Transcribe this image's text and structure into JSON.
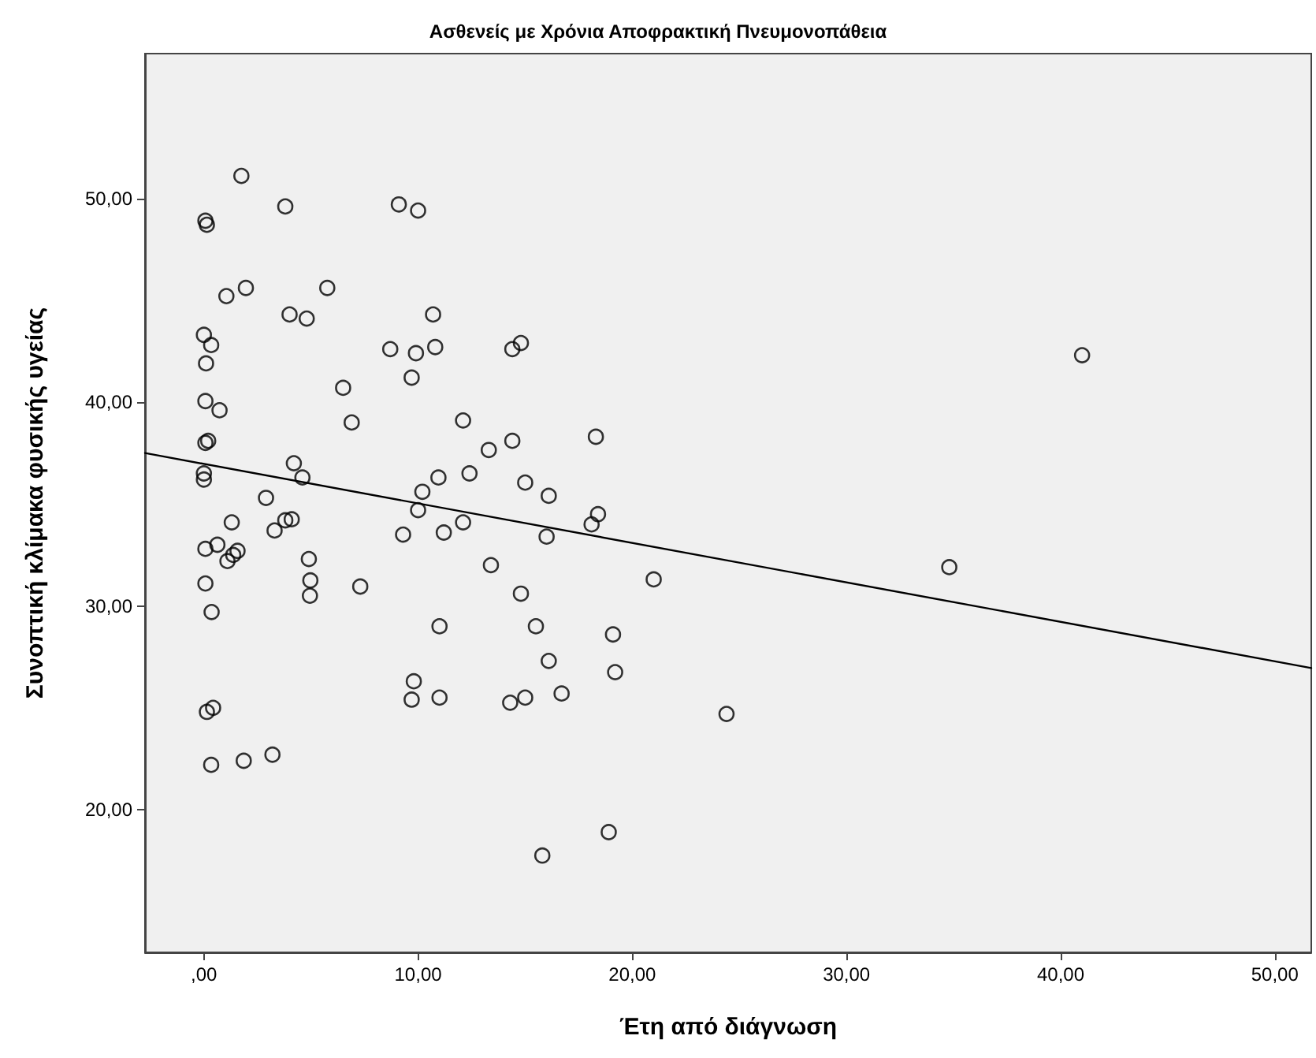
{
  "chart_data": {
    "type": "scatter",
    "title": "Ασθενείς με Χρόνια Αποφρακτική Πνευμονοπάθεια",
    "xlabel": "Έτη από διάγνωση",
    "ylabel": "Συνοπτική κλίμακα φυσικής υγείας",
    "xlim": [
      -2.75,
      51.7
    ],
    "ylim": [
      13.0,
      57.1
    ],
    "xticks": [
      {
        "value": 0,
        "label": ",00"
      },
      {
        "value": 10,
        "label": "10,00"
      },
      {
        "value": 20,
        "label": "20,00"
      },
      {
        "value": 30,
        "label": "30,00"
      },
      {
        "value": 40,
        "label": "40,00"
      },
      {
        "value": 50,
        "label": "50,00"
      }
    ],
    "yticks": [
      {
        "value": 20,
        "label": "20,00"
      },
      {
        "value": 30,
        "label": "30,00"
      },
      {
        "value": 40,
        "label": "40,00"
      },
      {
        "value": 50,
        "label": "50,00"
      }
    ],
    "grid": false,
    "marker": "circle",
    "series": [
      {
        "color": "#000000",
        "x": [
          1.75,
          3.8,
          0.07,
          0.14,
          9.1,
          10.0,
          1.05,
          1.96,
          5.76,
          4.0,
          4.8,
          0,
          0.34,
          0.1,
          8.7,
          9.9,
          9.7,
          6.5,
          0.07,
          0.73,
          6.9,
          0.07,
          0.2,
          4.2,
          4.6,
          0,
          0,
          2.9,
          1.3,
          3.3,
          3.8,
          4.1,
          0.07,
          0.63,
          1.57,
          1.37,
          1.1,
          4.9,
          4.97,
          4.95,
          7.3,
          0.07,
          0.36,
          9.8,
          9.7,
          0.14,
          0.43,
          0.34,
          1.86,
          3.2,
          10.2,
          10.0,
          10.7,
          10.8,
          14.4,
          14.8,
          12.1,
          13.3,
          14.4,
          18.3,
          10.95,
          12.4,
          15.0,
          16.1,
          9.3,
          11.2,
          12.1,
          16.0,
          18.1,
          18.4,
          13.4,
          14.8,
          21.0,
          11.0,
          15.5,
          19.1,
          16.1,
          19.2,
          11.0,
          14.3,
          15.0,
          16.7,
          24.4,
          18.9,
          15.8,
          34.8,
          41.0
        ],
        "values": [
          51.1,
          49.6,
          48.9,
          48.7,
          49.7,
          49.4,
          45.2,
          45.6,
          45.6,
          44.3,
          44.1,
          43.3,
          42.8,
          41.9,
          42.6,
          42.4,
          41.2,
          40.7,
          40.05,
          39.6,
          39.0,
          38.0,
          38.1,
          37.0,
          36.3,
          36.5,
          36.2,
          35.3,
          34.1,
          33.7,
          34.2,
          34.25,
          32.8,
          33.0,
          32.7,
          32.5,
          32.2,
          32.3,
          31.25,
          30.5,
          30.95,
          31.1,
          29.7,
          26.3,
          25.4,
          24.8,
          25.0,
          22.2,
          22.4,
          22.7,
          35.6,
          34.7,
          44.3,
          42.7,
          42.6,
          42.9,
          39.1,
          37.65,
          38.1,
          38.3,
          36.3,
          36.5,
          36.05,
          35.4,
          33.5,
          33.6,
          34.1,
          33.4,
          34.0,
          34.5,
          32.0,
          30.6,
          31.3,
          29.0,
          29.0,
          28.6,
          27.3,
          26.75,
          25.5,
          25.25,
          25.5,
          25.7,
          24.7,
          18.9,
          17.75,
          31.9,
          42.3
        ]
      },
      {
        "type": "line",
        "color": "#000000",
        "marker": "none",
        "line_style": "solid",
        "x": [
          -2.75,
          51.7
        ],
        "values": [
          37.5,
          26.95
        ]
      }
    ]
  }
}
